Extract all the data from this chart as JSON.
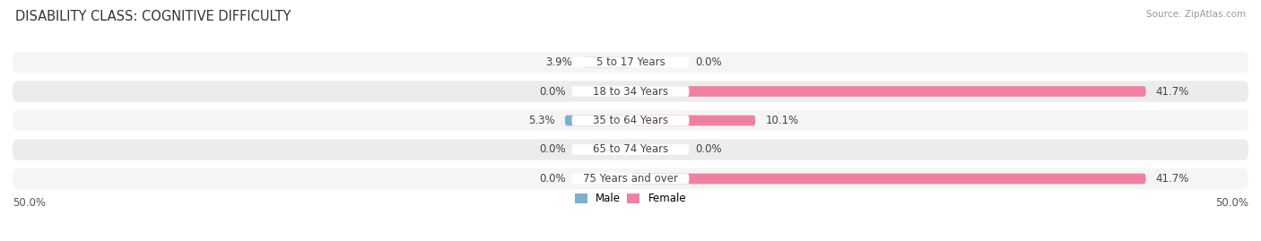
{
  "title": "DISABILITY CLASS: COGNITIVE DIFFICULTY",
  "source": "Source: ZipAtlas.com",
  "categories": [
    "5 to 17 Years",
    "18 to 34 Years",
    "35 to 64 Years",
    "65 to 74 Years",
    "75 Years and over"
  ],
  "male_values": [
    3.9,
    0.0,
    5.3,
    0.0,
    0.0
  ],
  "female_values": [
    0.0,
    41.7,
    10.1,
    0.0,
    41.7
  ],
  "x_max": 50.0,
  "male_color": "#7bafd4",
  "female_color": "#f080a0",
  "male_label": "Male",
  "female_label": "Female",
  "row_bg_even": "#f5f5f5",
  "row_bg_odd": "#ececec",
  "axis_label_left": "50.0%",
  "axis_label_right": "50.0%",
  "title_fontsize": 10.5,
  "label_fontsize": 8.5,
  "tick_fontsize": 8.5,
  "source_fontsize": 7.5
}
